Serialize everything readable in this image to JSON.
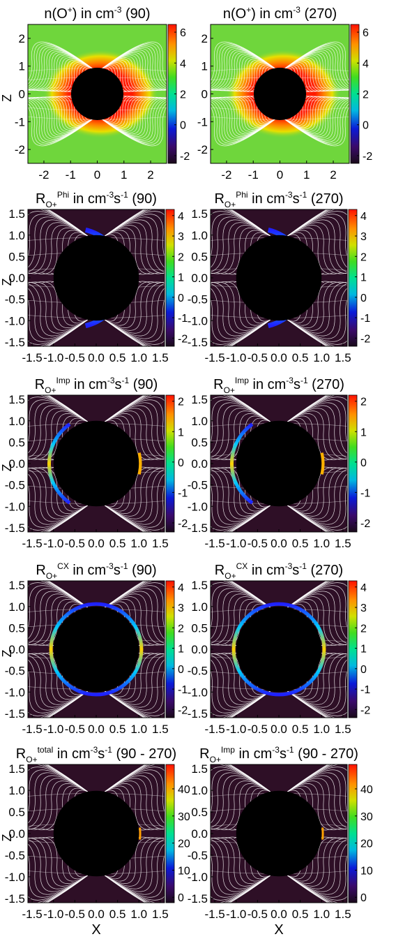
{
  "figure": {
    "ylabel": "Z",
    "xlabel": "X"
  },
  "chart_data": [
    {
      "type": "heatmap",
      "title_parts": {
        "main": "n(O",
        "sup1": "+",
        "mid": ") in cm",
        "sup2": "-3",
        "tail": " (90)"
      },
      "x_ticks": [
        "-2",
        "-1",
        "0",
        "1",
        "2"
      ],
      "y_ticks": [
        "2",
        "1",
        "0",
        "-1",
        "-2"
      ],
      "colorbar_ticks": [
        "6",
        "4",
        "2",
        "0",
        "-2"
      ],
      "colorbar_range": [
        -2.5,
        6.5
      ],
      "xlim": [
        -2.6,
        2.6
      ],
      "ylim": [
        -2.5,
        2.5
      ],
      "background_color": "#6fd63c",
      "planet_radius": 0.98,
      "feature": "density"
    },
    {
      "type": "heatmap",
      "title_parts": {
        "main": "n(O",
        "sup1": "+",
        "mid": ") in cm",
        "sup2": "-3",
        "tail": " (270)"
      },
      "x_ticks": [
        "-2",
        "-1",
        "0",
        "1",
        "2"
      ],
      "y_ticks": [
        "2",
        "1",
        "0",
        "-1",
        "-2"
      ],
      "colorbar_ticks": [
        "6",
        "4",
        "2",
        "0",
        "-2"
      ],
      "colorbar_range": [
        -2.5,
        6.5
      ],
      "xlim": [
        -2.6,
        2.6
      ],
      "ylim": [
        -2.5,
        2.5
      ],
      "background_color": "#6fd63c",
      "planet_radius": 0.98,
      "feature": "density"
    },
    {
      "type": "heatmap",
      "title_parts": {
        "main": "R",
        "sub": "O+",
        "sup1": "Phi",
        "mid": " in cm",
        "sup2": "-3",
        "mid2": "s",
        "sup3": "-1",
        "tail": " (90)"
      },
      "x_ticks": [
        "-1.5",
        "-1.0",
        "-0.5",
        "0.0",
        "0.5",
        "1.0",
        "1.5"
      ],
      "y_ticks": [
        "1.5",
        "1.0",
        "0.5",
        "0.0",
        "-0.5",
        "-1.0",
        "-1.5"
      ],
      "colorbar_ticks": [
        "4",
        "3",
        "2",
        "1",
        "0",
        "-1",
        "-2"
      ],
      "colorbar_range": [
        -2.4,
        4.3
      ],
      "xlim": [
        -1.6,
        1.6
      ],
      "ylim": [
        -1.6,
        1.6
      ],
      "background_color": "#2e0f26",
      "planet_radius": 1.0,
      "feature": "phi"
    },
    {
      "type": "heatmap",
      "title_parts": {
        "main": "R",
        "sub": "O+",
        "sup1": "Phi",
        "mid": " in cm",
        "sup2": "-3",
        "mid2": "s",
        "sup3": "-1",
        "tail": " (270)"
      },
      "x_ticks": [
        "-1.5",
        "-1.0",
        "-0.5",
        "0.0",
        "0.5",
        "1.0",
        "1.5"
      ],
      "y_ticks": [
        "1.5",
        "1.0",
        "0.5",
        "0.0",
        "-0.5",
        "-1.0",
        "-1.5"
      ],
      "colorbar_ticks": [
        "4",
        "3",
        "2",
        "1",
        "0",
        "-1",
        "-2"
      ],
      "colorbar_range": [
        -2.4,
        4.3
      ],
      "xlim": [
        -1.6,
        1.6
      ],
      "ylim": [
        -1.6,
        1.6
      ],
      "background_color": "#2e0f26",
      "planet_radius": 1.0,
      "feature": "phi"
    },
    {
      "type": "heatmap",
      "title_parts": {
        "main": "R",
        "sub": "O+",
        "sup1": "Imp",
        "mid": " in cm",
        "sup2": "-3",
        "mid2": "s",
        "sup3": "-1",
        "tail": " (90)"
      },
      "x_ticks": [
        "-1.5",
        "-1.0",
        "-0.5",
        "0.0",
        "0.5",
        "1.0",
        "1.5"
      ],
      "y_ticks": [
        "1.5",
        "1.0",
        "0.5",
        "0.0",
        "-0.5",
        "-1.0",
        "-1.5"
      ],
      "colorbar_ticks": [
        "2",
        "1",
        "0",
        "-1",
        "-2"
      ],
      "colorbar_range": [
        -2.3,
        2.2
      ],
      "xlim": [
        -1.6,
        1.6
      ],
      "ylim": [
        -1.6,
        1.6
      ],
      "background_color": "#2e0f26",
      "planet_radius": 1.0,
      "feature": "imp"
    },
    {
      "type": "heatmap",
      "title_parts": {
        "main": "R",
        "sub": "O+",
        "sup1": "Imp",
        "mid": " in cm",
        "sup2": "-3",
        "mid2": "s",
        "sup3": "-1",
        "tail": " (270)"
      },
      "x_ticks": [
        "-1.5",
        "-1.0",
        "-0.5",
        "0.0",
        "0.5",
        "1.0",
        "1.5"
      ],
      "y_ticks": [
        "1.5",
        "1.0",
        "0.5",
        "0.0",
        "-0.5",
        "-1.0",
        "-1.5"
      ],
      "colorbar_ticks": [
        "2",
        "1",
        "0",
        "-1",
        "-2"
      ],
      "colorbar_range": [
        -2.3,
        2.2
      ],
      "xlim": [
        -1.6,
        1.6
      ],
      "ylim": [
        -1.6,
        1.6
      ],
      "background_color": "#2e0f26",
      "planet_radius": 1.0,
      "feature": "imp"
    },
    {
      "type": "heatmap",
      "title_parts": {
        "main": "R",
        "sub": "O+",
        "sup1": "CX",
        "mid": " in cm",
        "sup2": "-3",
        "mid2": "s",
        "sup3": "-1",
        "tail": " (90)"
      },
      "x_ticks": [
        "-1.5",
        "-1.0",
        "-0.5",
        "0.0",
        "0.5",
        "1.0",
        "1.5"
      ],
      "y_ticks": [
        "1.5",
        "1.0",
        "0.5",
        "0.0",
        "-0.5",
        "-1.0",
        "-1.5"
      ],
      "colorbar_ticks": [
        "4",
        "3",
        "2",
        "1",
        "0",
        "-1",
        "-2"
      ],
      "colorbar_range": [
        -2.4,
        4.3
      ],
      "xlim": [
        -1.6,
        1.6
      ],
      "ylim": [
        -1.6,
        1.6
      ],
      "background_color": "#2e0f26",
      "planet_radius": 1.0,
      "feature": "cx"
    },
    {
      "type": "heatmap",
      "title_parts": {
        "main": "R",
        "sub": "O+",
        "sup1": "CX",
        "mid": " in cm",
        "sup2": "-3",
        "mid2": "s",
        "sup3": "-1",
        "tail": " (270)"
      },
      "x_ticks": [
        "-1.5",
        "-1.0",
        "-0.5",
        "0.0",
        "0.5",
        "1.0",
        "1.5"
      ],
      "y_ticks": [
        "1.5",
        "1.0",
        "0.5",
        "0.0",
        "-0.5",
        "-1.0",
        "-1.5"
      ],
      "colorbar_ticks": [
        "4",
        "3",
        "2",
        "1",
        "0",
        "-1",
        "-2"
      ],
      "colorbar_range": [
        -2.4,
        4.3
      ],
      "xlim": [
        -1.6,
        1.6
      ],
      "ylim": [
        -1.6,
        1.6
      ],
      "background_color": "#2e0f26",
      "planet_radius": 1.0,
      "feature": "cx"
    },
    {
      "type": "heatmap",
      "title_parts": {
        "main": "R",
        "sub": "O+",
        "sup1": "total",
        "mid": " in cm",
        "sup2": "-3",
        "mid2": "s",
        "sup3": "-1",
        "tail": " (90 - 270)"
      },
      "x_ticks": [
        "-1.5",
        "-1.0",
        "-0.5",
        "0.0",
        "0.5",
        "1.0",
        "1.5"
      ],
      "y_ticks": [
        "1.5",
        "1.0",
        "0.5",
        "0.0",
        "-0.5",
        "-1.0",
        "-1.5"
      ],
      "colorbar_ticks": [
        "40",
        "30",
        "20",
        "10",
        "0"
      ],
      "colorbar_range": [
        -2,
        49
      ],
      "xlim": [
        -1.6,
        1.6
      ],
      "ylim": [
        -1.6,
        1.6
      ],
      "background_color": "#2e0f26",
      "planet_radius": 1.0,
      "feature": "diff"
    },
    {
      "type": "heatmap",
      "title_parts": {
        "main": "R",
        "sub": "O+",
        "sup1": "Imp",
        "mid": " in cm",
        "sup2": "-3",
        "mid2": "s",
        "sup3": "-1",
        "tail": " (90 - 270)"
      },
      "x_ticks": [
        "-1.5",
        "-1.0",
        "-0.5",
        "0.0",
        "0.5",
        "1.0",
        "1.5"
      ],
      "y_ticks": [
        "1.5",
        "1.0",
        "0.5",
        "0.0",
        "-0.5",
        "-1.0",
        "-1.5"
      ],
      "colorbar_ticks": [
        "40",
        "30",
        "20",
        "10",
        "0"
      ],
      "colorbar_range": [
        -2,
        49
      ],
      "xlim": [
        -1.6,
        1.6
      ],
      "ylim": [
        -1.6,
        1.6
      ],
      "background_color": "#2e0f26",
      "planet_radius": 1.0,
      "feature": "diff"
    }
  ]
}
